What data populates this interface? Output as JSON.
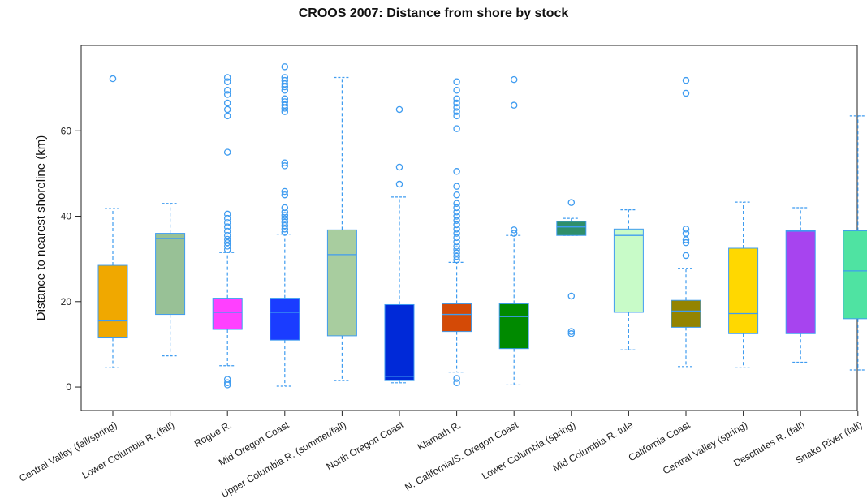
{
  "chart_data": {
    "type": "box",
    "title": "CROOS 2007: Distance from shore by stock",
    "xlabel": "",
    "ylabel": "Distance to nearest shoreline (km)",
    "ylim": [
      -5.5,
      80
    ],
    "yticks": [
      0,
      20,
      40,
      60
    ],
    "grid": false,
    "whisker_color": "#3f9cf0",
    "categories": [
      "Central Valley (fall/spring)",
      "Lower Columbia R. (fall)",
      "Rogue R.",
      "Mid Oregon Coast",
      "Upper Columbia R. (summer/fall)",
      "North Oregon Coast",
      "Klamath R.",
      "N. California/S. Oregon Coast",
      "Lower Columbia (spring)",
      "Mid Columbia R. tule",
      "California Coast",
      "Central Valley (spring)",
      "Deschutes R. (fall)",
      "Snake River (fall)"
    ],
    "boxes": [
      {
        "min": 4.5,
        "q1": 11.5,
        "median": 15.5,
        "q3": 28.5,
        "max": 41.8,
        "color": "#f0a800",
        "outliers": [
          72.2
        ]
      },
      {
        "min": 7.3,
        "q1": 17.0,
        "median": 34.8,
        "q3": 36.0,
        "max": 43.0,
        "color": "#98c196",
        "outliers": []
      },
      {
        "min": 5.0,
        "q1": 13.5,
        "median": 17.5,
        "q3": 20.8,
        "max": 31.5,
        "color": "#ff40ff",
        "outliers": [
          0.5,
          1.0,
          1.8,
          32.2,
          33.0,
          33.8,
          34.6,
          35.5,
          36.5,
          37.5,
          38.5,
          39.5,
          40.5,
          55.0,
          63.5,
          65.0,
          66.5,
          68.5,
          69.5,
          71.5,
          72.5
        ]
      },
      {
        "min": 0.2,
        "q1": 11.0,
        "median": 17.5,
        "q3": 20.8,
        "max": 35.8,
        "color": "#1a3cff",
        "outliers": [
          36.2,
          37.0,
          37.8,
          38.6,
          39.4,
          40.2,
          41.0,
          42.0,
          45.0,
          45.8,
          51.8,
          52.5,
          64.5,
          65.3,
          66.0,
          66.8,
          67.5,
          69.5,
          70.3,
          71.0,
          71.8,
          72.5,
          75.0
        ]
      },
      {
        "min": 1.5,
        "q1": 12.0,
        "median": 31.0,
        "q3": 36.8,
        "max": 72.5,
        "color": "#a8cd9f",
        "outliers": []
      },
      {
        "min": 1.0,
        "q1": 1.5,
        "median": 2.5,
        "q3": 19.3,
        "max": 44.5,
        "color": "#0029d8",
        "outliers": [
          47.5,
          51.5,
          65.0
        ]
      },
      {
        "min": 3.5,
        "q1": 13.0,
        "median": 17.0,
        "q3": 19.5,
        "max": 29.2,
        "color": "#d44a06",
        "outliers": [
          1.0,
          2.0,
          29.8,
          30.6,
          31.4,
          32.2,
          33.0,
          34.0,
          35.0,
          36.0,
          37.0,
          38.0,
          39.0,
          40.0,
          41.0,
          42.0,
          43.0,
          45.0,
          47.0,
          50.5,
          60.5,
          63.5,
          64.5,
          65.5,
          66.5,
          67.5,
          69.5,
          71.5
        ]
      },
      {
        "min": 0.5,
        "q1": 9.0,
        "median": 16.5,
        "q3": 19.5,
        "max": 35.5,
        "color": "#008a00",
        "outliers": [
          36.0,
          36.8,
          66.0,
          72.0
        ]
      },
      {
        "min": 35.5,
        "q1": 35.5,
        "median": 37.5,
        "q3": 38.8,
        "max": 39.5,
        "color": "#2f8f6a",
        "outliers": [
          12.5,
          13.0,
          21.3,
          43.2
        ]
      },
      {
        "min": 8.7,
        "q1": 17.5,
        "median": 35.5,
        "q3": 37.0,
        "max": 41.5,
        "color": "#c8fbc8",
        "outliers": []
      },
      {
        "min": 4.8,
        "q1": 14.0,
        "median": 17.8,
        "q3": 20.3,
        "max": 27.8,
        "color": "#948400",
        "outliers": [
          30.8,
          33.8,
          34.5,
          36.0,
          37.0,
          68.8,
          71.8
        ]
      },
      {
        "min": 4.5,
        "q1": 12.5,
        "median": 17.2,
        "q3": 32.5,
        "max": 43.3,
        "color": "#ffd800",
        "outliers": []
      },
      {
        "min": 5.8,
        "q1": 12.5,
        "median": 36.5,
        "q3": 36.6,
        "max": 42.0,
        "color": "#a744ef",
        "outliers": []
      },
      {
        "min": 4.0,
        "q1": 16.0,
        "median": 27.2,
        "q3": 36.6,
        "max": 63.5,
        "color": "#4fe3a2",
        "outliers": []
      }
    ]
  }
}
